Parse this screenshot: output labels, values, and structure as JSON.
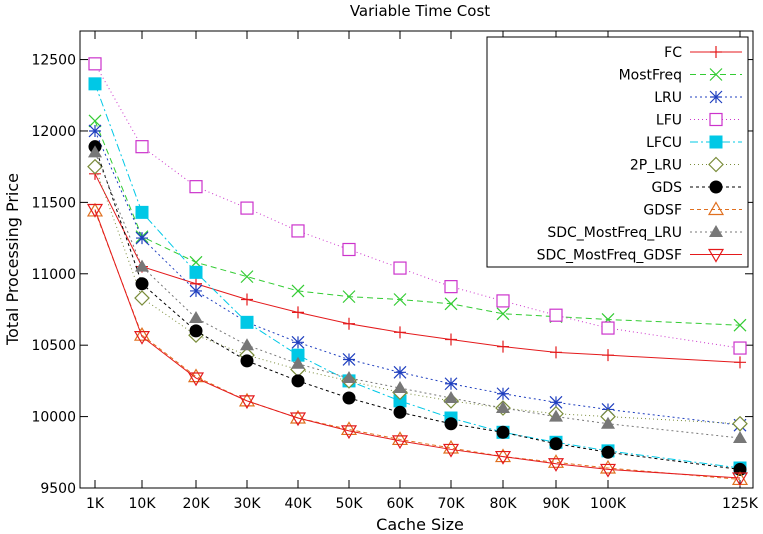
{
  "chart_data": {
    "type": "line",
    "title": "Variable Time Cost",
    "xlabel": "Cache Size",
    "ylabel": "Total Processing Price",
    "ylim": [
      9500,
      12700
    ],
    "yticks": [
      9500,
      10000,
      10500,
      11000,
      11500,
      12000,
      12500
    ],
    "ytick_labels": [
      "9500",
      "10000",
      "10500",
      "11000",
      "11500",
      "12000",
      "12500"
    ],
    "x": [
      1,
      10,
      20,
      30,
      40,
      50,
      60,
      70,
      80,
      90,
      100,
      125
    ],
    "xtick_labels": [
      "1K",
      "10K",
      "20K",
      "30K",
      "40K",
      "50K",
      "60K",
      "70K",
      "80K",
      "90K",
      "100K",
      "125K"
    ],
    "legend_position": "top-right",
    "grid": false,
    "series": [
      {
        "name": "FC",
        "color": "#e41a1c",
        "dash": "",
        "marker": "plus",
        "values": [
          11700,
          11050,
          10930,
          10820,
          10730,
          10650,
          10590,
          10540,
          10490,
          10450,
          10430,
          10380
        ]
      },
      {
        "name": "MostFreq",
        "color": "#33cc33",
        "dash": "6,4",
        "marker": "cross",
        "values": [
          12070,
          11260,
          11080,
          10980,
          10880,
          10840,
          10820,
          10790,
          10720,
          10700,
          10680,
          10640
        ]
      },
      {
        "name": "LRU",
        "color": "#1f3fbf",
        "dash": "2,3",
        "marker": "star",
        "values": [
          12000,
          11250,
          10880,
          10660,
          10520,
          10400,
          10310,
          10230,
          10160,
          10100,
          10050,
          9940
        ]
      },
      {
        "name": "LFU",
        "color": "#cc33cc",
        "dash": "1,3",
        "marker": "square-open",
        "values": [
          12470,
          11890,
          11610,
          11460,
          11300,
          11170,
          11040,
          10910,
          10810,
          10710,
          10620,
          10480
        ]
      },
      {
        "name": "LFCU",
        "color": "#00c8e6",
        "dash": "8,3,2,3",
        "marker": "square-filled",
        "values": [
          12330,
          11430,
          11010,
          10660,
          10430,
          10250,
          10110,
          9990,
          9890,
          9820,
          9760,
          9640
        ]
      },
      {
        "name": "2P_LRU",
        "color": "#7a8c3a",
        "dash": "1,3",
        "marker": "diamond-open",
        "values": [
          11750,
          10830,
          10570,
          10430,
          10330,
          10250,
          10170,
          10110,
          10060,
          10020,
          10000,
          9950
        ]
      },
      {
        "name": "GDS",
        "color": "#000000",
        "dash": "3,3",
        "marker": "circle-filled",
        "values": [
          11890,
          10930,
          10600,
          10390,
          10250,
          10130,
          10030,
          9950,
          9890,
          9810,
          9750,
          9630
        ]
      },
      {
        "name": "GDSF",
        "color": "#e07020",
        "dash": "4,3",
        "marker": "triangle-open",
        "values": [
          11440,
          10570,
          10280,
          10110,
          9990,
          9910,
          9840,
          9780,
          9720,
          9680,
          9640,
          9560
        ]
      },
      {
        "name": "SDC_MostFreq_LRU",
        "color": "#777777",
        "dash": "2,3",
        "marker": "triangle-filled",
        "values": [
          11850,
          11050,
          10690,
          10500,
          10370,
          10270,
          10200,
          10130,
          10060,
          10000,
          9950,
          9850
        ]
      },
      {
        "name": "SDC_MostFreq_GDSF",
        "color": "#e41a1c",
        "dash": "",
        "marker": "triangle-down-open",
        "values": [
          11450,
          10560,
          10270,
          10110,
          9990,
          9900,
          9830,
          9770,
          9720,
          9670,
          9630,
          9570
        ]
      }
    ]
  }
}
